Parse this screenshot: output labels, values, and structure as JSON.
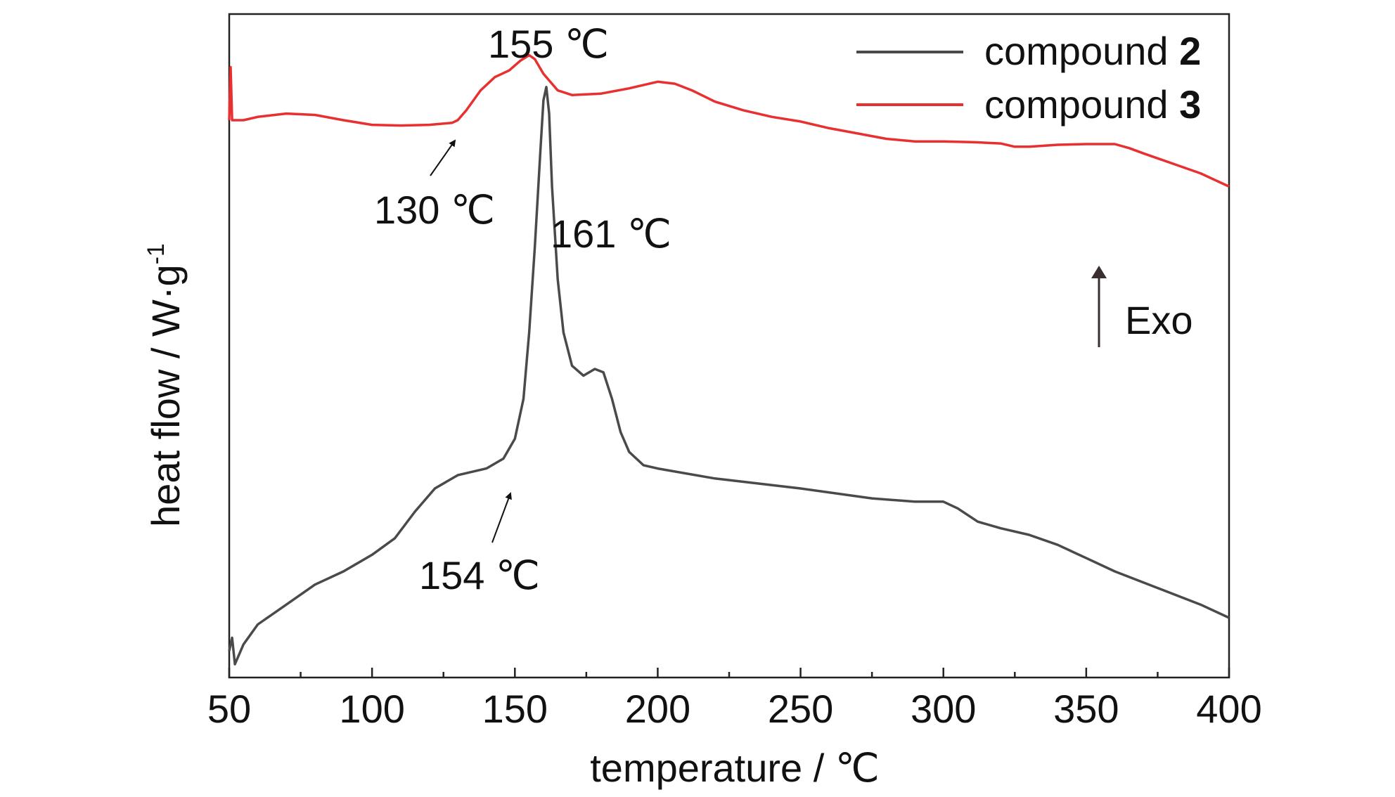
{
  "chart_data": {
    "type": "line",
    "x": {
      "label": "temperature / ℃",
      "range": [
        50,
        400
      ],
      "ticks": [
        50,
        100,
        150,
        200,
        250,
        300,
        350,
        400
      ],
      "minor_step": 25
    },
    "y": {
      "label": "heat flow / W·g⁻¹",
      "ticks_shown": false
    },
    "grid": false,
    "legend": {
      "placement": "top-right",
      "entries": [
        {
          "prefix": "compound ",
          "bold": "2",
          "color": "#4a4a4a"
        },
        {
          "prefix": "compound ",
          "bold": "3",
          "color": "#e83030"
        }
      ]
    },
    "series": [
      {
        "name": "compound 2",
        "color": "#4a4a4a",
        "points": [
          [
            50,
            0.04
          ],
          [
            51,
            0.06
          ],
          [
            52,
            0.02
          ],
          [
            55,
            0.05
          ],
          [
            60,
            0.08
          ],
          [
            70,
            0.11
          ],
          [
            80,
            0.14
          ],
          [
            90,
            0.16
          ],
          [
            100,
            0.185
          ],
          [
            108,
            0.21
          ],
          [
            115,
            0.25
          ],
          [
            122,
            0.285
          ],
          [
            130,
            0.305
          ],
          [
            140,
            0.315
          ],
          [
            146,
            0.33
          ],
          [
            150,
            0.36
          ],
          [
            153,
            0.42
          ],
          [
            155,
            0.52
          ],
          [
            157,
            0.65
          ],
          [
            159,
            0.8
          ],
          [
            160,
            0.87
          ],
          [
            161,
            0.89
          ],
          [
            162,
            0.85
          ],
          [
            163,
            0.74
          ],
          [
            165,
            0.6
          ],
          [
            167,
            0.52
          ],
          [
            170,
            0.47
          ],
          [
            174,
            0.455
          ],
          [
            178,
            0.465
          ],
          [
            181,
            0.46
          ],
          [
            184,
            0.42
          ],
          [
            187,
            0.37
          ],
          [
            190,
            0.34
          ],
          [
            195,
            0.32
          ],
          [
            200,
            0.315
          ],
          [
            220,
            0.3
          ],
          [
            250,
            0.285
          ],
          [
            275,
            0.27
          ],
          [
            290,
            0.265
          ],
          [
            300,
            0.265
          ],
          [
            305,
            0.255
          ],
          [
            312,
            0.235
          ],
          [
            320,
            0.225
          ],
          [
            330,
            0.215
          ],
          [
            340,
            0.2
          ],
          [
            350,
            0.18
          ],
          [
            360,
            0.16
          ],
          [
            375,
            0.135
          ],
          [
            390,
            0.11
          ],
          [
            400,
            0.09
          ]
        ]
      },
      {
        "name": "compound 3",
        "color": "#e83030",
        "points": [
          [
            50,
            0.84
          ],
          [
            50.5,
            0.92
          ],
          [
            51,
            0.84
          ],
          [
            55,
            0.84
          ],
          [
            60,
            0.845
          ],
          [
            70,
            0.85
          ],
          [
            80,
            0.848
          ],
          [
            90,
            0.84
          ],
          [
            100,
            0.833
          ],
          [
            110,
            0.832
          ],
          [
            120,
            0.833
          ],
          [
            128,
            0.836
          ],
          [
            130,
            0.84
          ],
          [
            133,
            0.855
          ],
          [
            138,
            0.885
          ],
          [
            143,
            0.905
          ],
          [
            148,
            0.915
          ],
          [
            152,
            0.93
          ],
          [
            155,
            0.938
          ],
          [
            157,
            0.932
          ],
          [
            160,
            0.91
          ],
          [
            165,
            0.885
          ],
          [
            170,
            0.878
          ],
          [
            180,
            0.88
          ],
          [
            190,
            0.888
          ],
          [
            200,
            0.898
          ],
          [
            206,
            0.895
          ],
          [
            212,
            0.885
          ],
          [
            220,
            0.868
          ],
          [
            230,
            0.855
          ],
          [
            240,
            0.845
          ],
          [
            250,
            0.838
          ],
          [
            260,
            0.828
          ],
          [
            270,
            0.82
          ],
          [
            280,
            0.812
          ],
          [
            290,
            0.808
          ],
          [
            300,
            0.808
          ],
          [
            310,
            0.807
          ],
          [
            320,
            0.805
          ],
          [
            325,
            0.8
          ],
          [
            330,
            0.8
          ],
          [
            340,
            0.803
          ],
          [
            350,
            0.804
          ],
          [
            360,
            0.804
          ],
          [
            365,
            0.798
          ],
          [
            370,
            0.79
          ],
          [
            380,
            0.775
          ],
          [
            390,
            0.76
          ],
          [
            400,
            0.74
          ]
        ]
      }
    ],
    "annotations": [
      {
        "text": "155 ℃",
        "target": [
          155,
          0.938
        ],
        "arrow": false
      },
      {
        "text": "130 ℃",
        "target": [
          130,
          0.84
        ],
        "arrow": true
      },
      {
        "text": "161 ℃",
        "target": [
          161,
          0.89
        ],
        "arrow": false
      },
      {
        "text": "154 ℃",
        "target": [
          154,
          0.33
        ],
        "arrow": true
      },
      {
        "text": "Exo",
        "arrow_direction": "up",
        "arrow": true
      }
    ]
  }
}
